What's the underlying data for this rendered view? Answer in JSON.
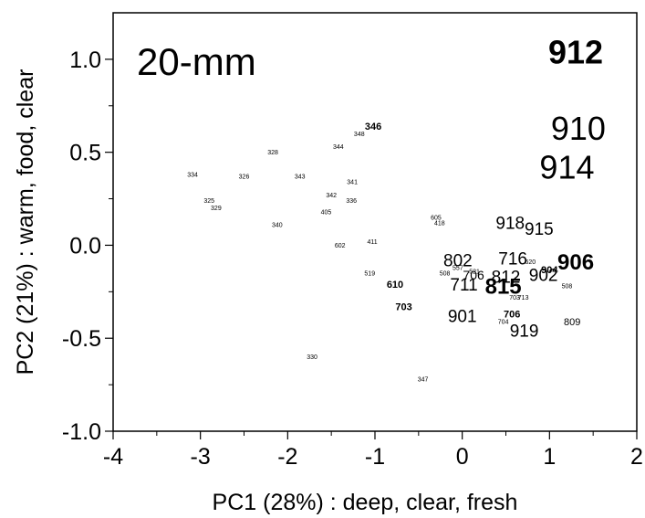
{
  "chart_data": {
    "type": "scatter",
    "title": "20-mm",
    "xlabel": "PC1 (28%) : deep, clear, fresh",
    "ylabel": "PC2 (21%) : warm, food, clear",
    "xlim": [
      -4,
      2
    ],
    "ylim": [
      -1.0,
      1.25
    ],
    "xticks": [
      -4,
      -3,
      -2,
      -1,
      0,
      1,
      2
    ],
    "xtick_labels": [
      "-4",
      "-3",
      "-2",
      "-1",
      "0",
      "1",
      "2"
    ],
    "yticks": [
      -1.0,
      -0.5,
      0.0,
      0.5,
      1.0
    ],
    "ytick_labels": [
      "-1.0",
      "-0.5",
      "0.0",
      "0.5",
      "1.0"
    ],
    "grid": false,
    "markers": "labels",
    "points": [
      {
        "label": "912",
        "x": 1.3,
        "y": 1.04,
        "size": "xl",
        "bold": true
      },
      {
        "label": "910",
        "x": 1.33,
        "y": 0.63,
        "size": "xl",
        "bold": false
      },
      {
        "label": "914",
        "x": 1.2,
        "y": 0.42,
        "size": "xl",
        "bold": false
      },
      {
        "label": "906",
        "x": 1.3,
        "y": -0.09,
        "size": "l",
        "bold": true
      },
      {
        "label": "918",
        "x": 0.55,
        "y": 0.12,
        "size": "m",
        "bold": false
      },
      {
        "label": "915",
        "x": 0.88,
        "y": 0.09,
        "size": "m",
        "bold": false
      },
      {
        "label": "716",
        "x": 0.58,
        "y": -0.07,
        "size": "m",
        "bold": false
      },
      {
        "label": "802",
        "x": -0.05,
        "y": -0.08,
        "size": "m",
        "bold": false
      },
      {
        "label": "812",
        "x": 0.5,
        "y": -0.17,
        "size": "m",
        "bold": false
      },
      {
        "label": "902",
        "x": 0.93,
        "y": -0.16,
        "size": "m",
        "bold": false
      },
      {
        "label": "711",
        "x": 0.02,
        "y": -0.21,
        "size": "m",
        "bold": false
      },
      {
        "label": "815",
        "x": 0.47,
        "y": -0.22,
        "size": "l",
        "bold": true
      },
      {
        "label": "901",
        "x": 0.0,
        "y": -0.38,
        "size": "m",
        "bold": false
      },
      {
        "label": "919",
        "x": 0.71,
        "y": -0.46,
        "size": "m",
        "bold": false
      },
      {
        "label": "706",
        "x": 0.13,
        "y": -0.16,
        "size": "s",
        "bold": false
      },
      {
        "label": "904",
        "x": 1.0,
        "y": -0.13,
        "size": "xs",
        "bold": true
      },
      {
        "label": "809",
        "x": 1.26,
        "y": -0.41,
        "size": "xs",
        "bold": false
      },
      {
        "label": "706",
        "x": 0.57,
        "y": -0.37,
        "size": "xs",
        "bold": true
      },
      {
        "label": "704",
        "x": 0.47,
        "y": -0.41,
        "size": "xxs",
        "bold": false
      },
      {
        "label": "703",
        "x": 0.6,
        "y": -0.28,
        "size": "xxs",
        "bold": false
      },
      {
        "label": "713",
        "x": 0.7,
        "y": -0.28,
        "size": "xxs",
        "bold": false
      },
      {
        "label": "508",
        "x": 1.2,
        "y": -0.22,
        "size": "xxs",
        "bold": false
      },
      {
        "label": "620",
        "x": 0.78,
        "y": -0.09,
        "size": "xxs",
        "bold": false
      },
      {
        "label": "508",
        "x": -0.2,
        "y": -0.15,
        "size": "xxs",
        "bold": false
      },
      {
        "label": "557",
        "x": -0.05,
        "y": -0.12,
        "size": "xxs",
        "bold": false
      },
      {
        "label": "521",
        "x": 0.14,
        "y": -0.14,
        "size": "xxs",
        "bold": false
      },
      {
        "label": "610",
        "x": -0.77,
        "y": -0.21,
        "size": "xs",
        "bold": true
      },
      {
        "label": "703",
        "x": -0.67,
        "y": -0.33,
        "size": "xs",
        "bold": true
      },
      {
        "label": "519",
        "x": -1.06,
        "y": -0.15,
        "size": "xxs",
        "bold": false
      },
      {
        "label": "411",
        "x": -1.03,
        "y": 0.02,
        "size": "xxs",
        "bold": false
      },
      {
        "label": "602",
        "x": -1.4,
        "y": 0.0,
        "size": "xxs",
        "bold": false
      },
      {
        "label": "605",
        "x": -0.3,
        "y": 0.15,
        "size": "xxs",
        "bold": false
      },
      {
        "label": "418",
        "x": -0.26,
        "y": 0.12,
        "size": "xxs",
        "bold": false
      },
      {
        "label": "346",
        "x": -1.02,
        "y": 0.64,
        "size": "xs",
        "bold": true
      },
      {
        "label": "348",
        "x": -1.18,
        "y": 0.6,
        "size": "xxs",
        "bold": false
      },
      {
        "label": "344",
        "x": -1.42,
        "y": 0.53,
        "size": "xxs",
        "bold": false
      },
      {
        "label": "328",
        "x": -2.17,
        "y": 0.5,
        "size": "xxs",
        "bold": false
      },
      {
        "label": "343",
        "x": -1.86,
        "y": 0.37,
        "size": "xxs",
        "bold": false
      },
      {
        "label": "341",
        "x": -1.26,
        "y": 0.34,
        "size": "xxs",
        "bold": false
      },
      {
        "label": "342",
        "x": -1.5,
        "y": 0.27,
        "size": "xxs",
        "bold": false
      },
      {
        "label": "336",
        "x": -1.27,
        "y": 0.24,
        "size": "xxs",
        "bold": false
      },
      {
        "label": "405",
        "x": -1.56,
        "y": 0.18,
        "size": "xxs",
        "bold": false
      },
      {
        "label": "334",
        "x": -3.09,
        "y": 0.38,
        "size": "xxs",
        "bold": false
      },
      {
        "label": "326",
        "x": -2.5,
        "y": 0.37,
        "size": "xxs",
        "bold": false
      },
      {
        "label": "325",
        "x": -2.9,
        "y": 0.24,
        "size": "xxs",
        "bold": false
      },
      {
        "label": "329",
        "x": -2.82,
        "y": 0.2,
        "size": "xxs",
        "bold": false
      },
      {
        "label": "340",
        "x": -2.12,
        "y": 0.11,
        "size": "xxs",
        "bold": false
      },
      {
        "label": "330",
        "x": -1.72,
        "y": -0.6,
        "size": "xxs",
        "bold": false
      },
      {
        "label": "347",
        "x": -0.45,
        "y": -0.72,
        "size": "xxs",
        "bold": false
      }
    ]
  }
}
